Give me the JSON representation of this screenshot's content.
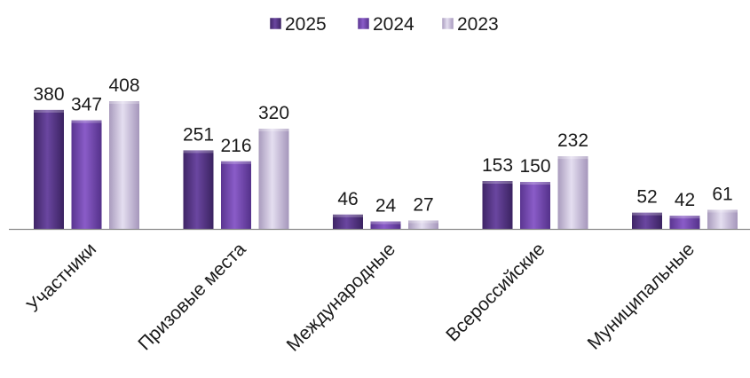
{
  "chart_data": {
    "type": "bar",
    "title": "",
    "xlabel": "",
    "ylabel": "",
    "categories": [
      "Участники",
      "Призовые места",
      "Международные",
      "Всероссийские",
      "Муниципальные"
    ],
    "series": [
      {
        "name": "2025",
        "values": [
          380,
          251,
          46,
          153,
          52
        ],
        "color": "#5b3a8c"
      },
      {
        "name": "2024",
        "values": [
          347,
          216,
          24,
          150,
          42
        ],
        "color": "#7a4fb5"
      },
      {
        "name": "2023",
        "values": [
          408,
          320,
          27,
          232,
          61
        ],
        "color": "#c7bed6"
      }
    ],
    "ylim": [
      0,
      408
    ],
    "grid": false,
    "legend_position": "top-center",
    "data_labels": true
  }
}
